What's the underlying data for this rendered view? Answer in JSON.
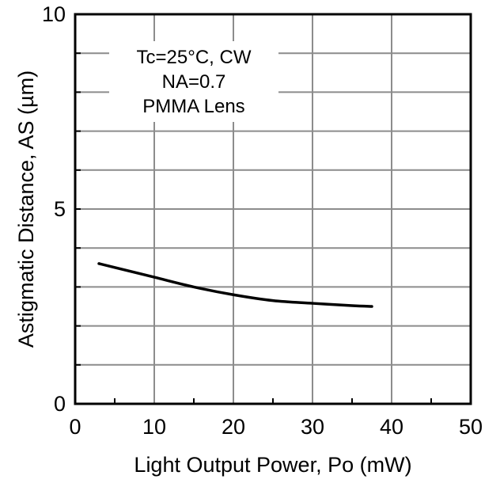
{
  "chart_data": {
    "type": "line",
    "xlabel": "Light Output Power, Po (mW)",
    "ylabel": "Astigmatic Distance, AS (µm)",
    "xlim": [
      0,
      50
    ],
    "ylim": [
      0,
      10
    ],
    "x_ticks": [
      "0",
      "10",
      "20",
      "30",
      "40",
      "50"
    ],
    "y_ticks": [
      "0",
      "5",
      "10"
    ],
    "grid": true,
    "x_grid_step": 10,
    "y_grid_step": 1,
    "annotation": [
      "Tc=25°C, CW",
      "NA=0.7",
      "PMMA Lens"
    ],
    "series": [
      {
        "x": [
          3,
          5,
          10,
          15,
          20,
          25,
          30,
          35,
          37.5
        ],
        "y": [
          3.6,
          3.5,
          3.25,
          3.0,
          2.8,
          2.65,
          2.58,
          2.52,
          2.5
        ]
      }
    ],
    "colors": {
      "line": "#000000",
      "grid": "#8c8c8c",
      "axis": "#000000"
    }
  }
}
